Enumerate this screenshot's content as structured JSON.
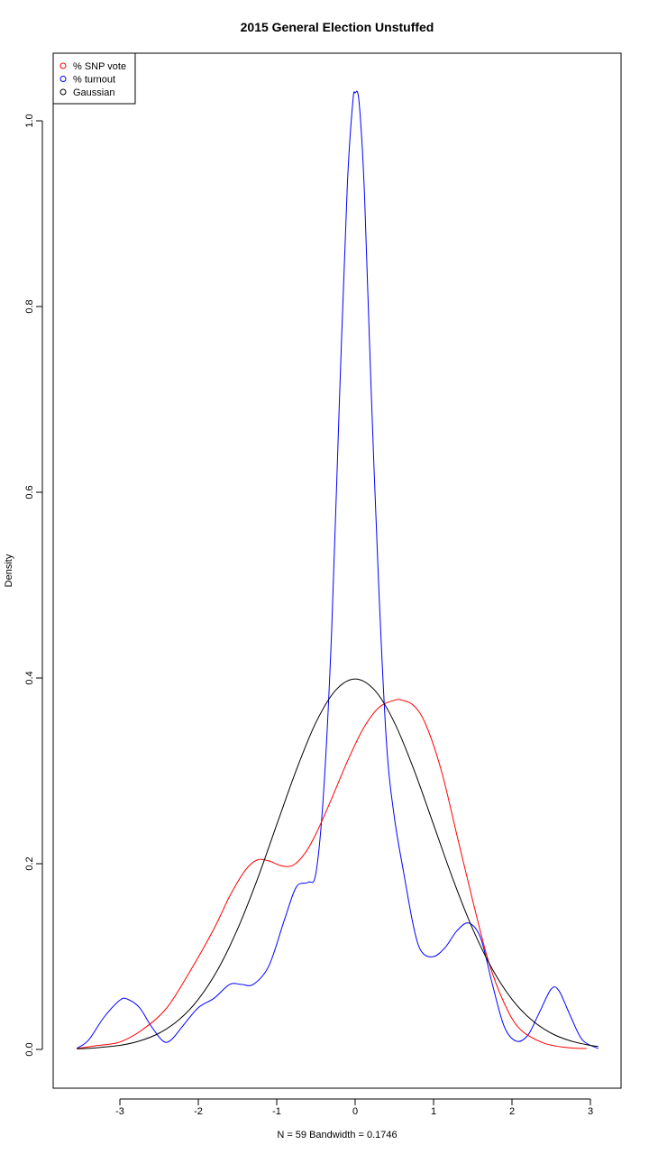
{
  "chart_data": {
    "type": "line",
    "title": "2015 General Election Unstuffed",
    "xlabel": "N = 59   Bandwidth = 0.1746",
    "ylabel": "Density",
    "xlim": [
      -3.6,
      3.15
    ],
    "ylim": [
      0,
      1.03
    ],
    "x_ticks": [
      -3,
      -2,
      -1,
      0,
      1,
      2,
      3
    ],
    "y_ticks": [
      0.0,
      0.2,
      0.4,
      0.6,
      0.8,
      1.0
    ],
    "x_tick_labels": [
      "-3",
      "-2",
      "-1",
      "0",
      "1",
      "2",
      "3"
    ],
    "y_tick_labels": [
      "0.0",
      "0.2",
      "0.4",
      "0.6",
      "0.8",
      "1.0"
    ],
    "grid": false,
    "legend_position": "top-left",
    "legend": [
      {
        "label": "% SNP vote",
        "color": "#ff0000"
      },
      {
        "label": "% turnout",
        "color": "#0000ff"
      },
      {
        "label": "Gaussian",
        "color": "#000000"
      }
    ],
    "series": [
      {
        "name": "% SNP vote",
        "color": "#ff0000",
        "points": [
          [
            -3.55,
            0.001
          ],
          [
            -3.3,
            0.004
          ],
          [
            -3.0,
            0.008
          ],
          [
            -2.7,
            0.022
          ],
          [
            -2.4,
            0.045
          ],
          [
            -2.1,
            0.085
          ],
          [
            -1.8,
            0.13
          ],
          [
            -1.6,
            0.165
          ],
          [
            -1.4,
            0.193
          ],
          [
            -1.25,
            0.204
          ],
          [
            -1.1,
            0.203
          ],
          [
            -0.95,
            0.198
          ],
          [
            -0.8,
            0.198
          ],
          [
            -0.65,
            0.21
          ],
          [
            -0.5,
            0.232
          ],
          [
            -0.3,
            0.27
          ],
          [
            -0.1,
            0.31
          ],
          [
            0.1,
            0.345
          ],
          [
            0.3,
            0.368
          ],
          [
            0.5,
            0.376
          ],
          [
            0.6,
            0.376
          ],
          [
            0.75,
            0.37
          ],
          [
            0.9,
            0.35
          ],
          [
            1.1,
            0.3
          ],
          [
            1.3,
            0.23
          ],
          [
            1.5,
            0.16
          ],
          [
            1.7,
            0.095
          ],
          [
            1.9,
            0.05
          ],
          [
            2.1,
            0.022
          ],
          [
            2.4,
            0.007
          ],
          [
            2.7,
            0.002
          ],
          [
            2.95,
            0.001
          ]
        ]
      },
      {
        "name": "% turnout",
        "color": "#0000ff",
        "points": [
          [
            -3.55,
            0.001
          ],
          [
            -3.4,
            0.01
          ],
          [
            -3.2,
            0.035
          ],
          [
            -3.0,
            0.053
          ],
          [
            -2.9,
            0.054
          ],
          [
            -2.75,
            0.045
          ],
          [
            -2.6,
            0.025
          ],
          [
            -2.45,
            0.009
          ],
          [
            -2.35,
            0.01
          ],
          [
            -2.2,
            0.025
          ],
          [
            -2.0,
            0.045
          ],
          [
            -1.8,
            0.055
          ],
          [
            -1.6,
            0.07
          ],
          [
            -1.45,
            0.07
          ],
          [
            -1.3,
            0.07
          ],
          [
            -1.1,
            0.09
          ],
          [
            -0.9,
            0.14
          ],
          [
            -0.75,
            0.175
          ],
          [
            -0.6,
            0.18
          ],
          [
            -0.5,
            0.19
          ],
          [
            -0.4,
            0.28
          ],
          [
            -0.3,
            0.45
          ],
          [
            -0.2,
            0.7
          ],
          [
            -0.1,
            0.93
          ],
          [
            -0.03,
            1.02
          ],
          [
            0.0,
            1.03
          ],
          [
            0.05,
            1.02
          ],
          [
            0.12,
            0.92
          ],
          [
            0.2,
            0.72
          ],
          [
            0.3,
            0.5
          ],
          [
            0.4,
            0.33
          ],
          [
            0.5,
            0.25
          ],
          [
            0.62,
            0.19
          ],
          [
            0.75,
            0.13
          ],
          [
            0.85,
            0.105
          ],
          [
            1.0,
            0.1
          ],
          [
            1.15,
            0.11
          ],
          [
            1.3,
            0.128
          ],
          [
            1.45,
            0.136
          ],
          [
            1.6,
            0.12
          ],
          [
            1.75,
            0.07
          ],
          [
            1.9,
            0.025
          ],
          [
            2.05,
            0.009
          ],
          [
            2.2,
            0.015
          ],
          [
            2.35,
            0.04
          ],
          [
            2.5,
            0.065
          ],
          [
            2.6,
            0.063
          ],
          [
            2.75,
            0.035
          ],
          [
            2.9,
            0.01
          ],
          [
            3.1,
            0.001
          ]
        ]
      },
      {
        "name": "Gaussian",
        "color": "#000000",
        "points": [
          [
            -3.55,
            0.0007
          ],
          [
            -3.3,
            0.0017
          ],
          [
            -3.0,
            0.0044
          ],
          [
            -2.75,
            0.0091
          ],
          [
            -2.5,
            0.0175
          ],
          [
            -2.25,
            0.0317
          ],
          [
            -2.0,
            0.054
          ],
          [
            -1.75,
            0.0863
          ],
          [
            -1.5,
            0.1295
          ],
          [
            -1.25,
            0.1826
          ],
          [
            -1.0,
            0.242
          ],
          [
            -0.75,
            0.3011
          ],
          [
            -0.5,
            0.3521
          ],
          [
            -0.25,
            0.3867
          ],
          [
            0.0,
            0.3989
          ],
          [
            0.25,
            0.3867
          ],
          [
            0.5,
            0.3521
          ],
          [
            0.75,
            0.3011
          ],
          [
            1.0,
            0.242
          ],
          [
            1.25,
            0.1826
          ],
          [
            1.5,
            0.1295
          ],
          [
            1.75,
            0.0863
          ],
          [
            2.0,
            0.054
          ],
          [
            2.25,
            0.0317
          ],
          [
            2.5,
            0.0175
          ],
          [
            2.75,
            0.0091
          ],
          [
            3.0,
            0.0044
          ],
          [
            3.1,
            0.0033
          ]
        ]
      }
    ]
  }
}
